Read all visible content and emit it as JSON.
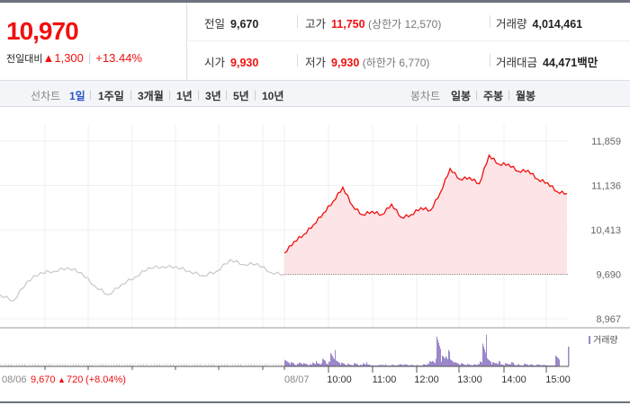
{
  "price": {
    "current": "10,970",
    "change_label": "전일대비",
    "arrow": "▲",
    "change": "1,300",
    "percent": "+13.44%"
  },
  "summary": {
    "prev_label": "전일",
    "prev": "9,670",
    "high_label": "고가",
    "high": "11,750",
    "upper_limit_label": "(상한가",
    "upper_limit": "12,570)",
    "volume_label": "거래량",
    "volume": "4,014,461",
    "open_label": "시가",
    "open": "9,930",
    "low_label": "저가",
    "low": "9,930",
    "lower_limit_label": "(하한가",
    "lower_limit": "6,770)",
    "amount_label": "거래대금",
    "amount": "44,471",
    "amount_unit": "백만"
  },
  "tabs": {
    "line_label": "선차트",
    "line": [
      "1일",
      "1주일",
      "3개월",
      "1년",
      "3년",
      "5년",
      "10년"
    ],
    "active": "1일",
    "candle_label": "봉차트",
    "candle": [
      "일봉",
      "주봉",
      "월봉"
    ]
  },
  "colors": {
    "up": "#f01010",
    "prev_line": "#c8c8c8",
    "volume": "#9b87c9",
    "fill": "#fde4e6"
  },
  "chart_data": {
    "type": "line",
    "y_ticks": [
      "11,859",
      "11,136",
      "10,413",
      "9,690",
      "8,967"
    ],
    "ylim": [
      8967,
      11859
    ],
    "reference": 9690,
    "prev_day": {
      "label": "08/06",
      "close": "9,670",
      "arrow": "▲",
      "change": "720",
      "percent": "(+8.04%)",
      "values": [
        9357,
        9260,
        9574,
        9719,
        9740,
        9800,
        9719,
        9500,
        9357,
        9530,
        9650,
        9800,
        9815,
        9815,
        9740,
        9670,
        9740,
        9930,
        9850,
        9865,
        9720,
        9690
      ]
    },
    "today": {
      "label": "08/07",
      "values": [
        10037,
        10225,
        10340,
        10500,
        10687,
        10876,
        11107,
        10803,
        10659,
        10716,
        10659,
        10832,
        10615,
        10659,
        10774,
        10731,
        11020,
        11411,
        11238,
        11267,
        11165,
        11628,
        11483,
        11483,
        11367,
        11382,
        11238,
        11180,
        11035,
        11006
      ]
    },
    "x_ticks": [
      "10:00",
      "11:00",
      "12:00",
      "13:00",
      "14:00",
      "15:00"
    ],
    "volume_legend": "거래량",
    "volume": [
      12,
      8,
      5,
      9,
      6,
      4,
      10,
      7,
      14,
      9,
      30,
      12,
      7,
      5,
      4,
      6,
      3,
      8,
      4,
      2,
      3,
      4,
      2,
      3,
      3,
      5,
      4,
      3,
      3,
      2,
      4,
      10,
      14,
      60,
      20,
      30,
      16,
      8,
      6,
      5,
      4,
      4,
      9,
      58,
      16,
      8,
      10,
      5,
      6,
      8,
      4,
      3,
      5,
      4,
      3,
      4,
      3,
      1,
      2,
      20
    ]
  }
}
